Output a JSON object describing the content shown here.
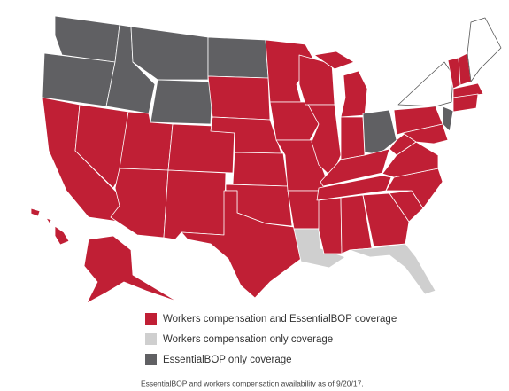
{
  "legend": [
    {
      "label": "Workers compensation and EssentialBOP coverage",
      "color": "#c01f35"
    },
    {
      "label": "Workers compensation only coverage",
      "color": "#cfcfcf"
    },
    {
      "label": "EssentialBOP only coverage",
      "color": "#606063"
    }
  ],
  "note": "EssentialBOP and workers compensation availability as of 9/20/17."
}
